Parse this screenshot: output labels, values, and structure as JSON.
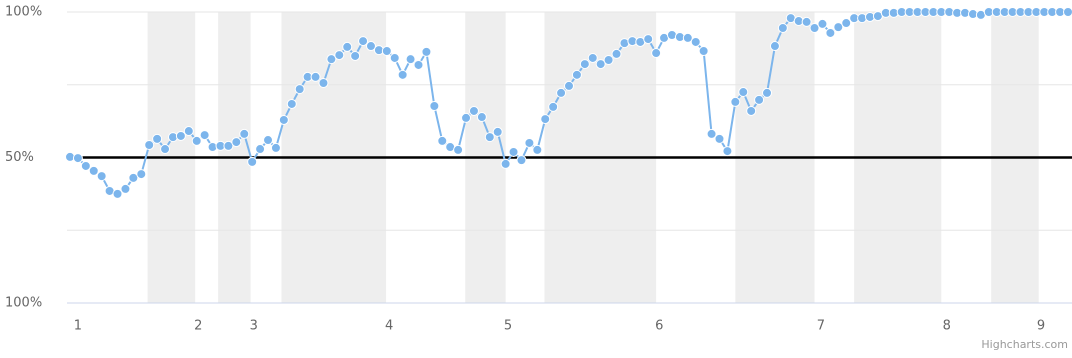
{
  "chart_data": {
    "type": "line",
    "values": [
      50.2,
      49.8,
      47.1,
      45.4,
      43.6,
      38.5,
      37.5,
      39.2,
      43.0,
      44.3,
      54.3,
      56.4,
      52.9,
      57.0,
      57.4,
      59.1,
      55.7,
      57.7,
      53.6,
      54.0,
      54.0,
      55.3,
      58.1,
      48.5,
      52.9,
      56.0,
      53.3,
      62.9,
      68.4,
      73.5,
      77.7,
      77.7,
      75.6,
      83.8,
      85.2,
      88.0,
      84.9,
      90.0,
      88.3,
      86.9,
      86.6,
      84.2,
      78.4,
      83.8,
      81.8,
      86.3,
      67.7,
      55.7,
      53.6,
      52.6,
      63.6,
      66.0,
      63.9,
      57.0,
      58.8,
      47.8,
      51.9,
      49.1,
      55.0,
      52.6,
      63.2,
      67.4,
      72.2,
      74.6,
      78.4,
      82.1,
      84.2,
      82.1,
      83.5,
      85.6,
      89.3,
      90.0,
      89.7,
      90.7,
      85.9,
      91.1,
      92.1,
      91.4,
      91.1,
      89.7,
      86.6,
      58.1,
      56.4,
      52.2,
      69.1,
      72.5,
      66.0,
      69.8,
      72.2,
      88.3,
      94.5,
      97.9,
      96.9,
      96.6,
      94.5,
      95.9,
      92.8,
      94.8,
      96.2,
      97.9,
      97.9,
      98.3,
      98.6,
      99.7,
      99.7,
      100,
      100,
      100,
      100,
      100,
      100,
      100,
      99.7,
      99.7,
      99.3,
      99.0,
      100,
      100,
      100,
      100,
      100,
      100,
      100,
      100,
      100,
      100,
      100
    ],
    "color": "#7cb5ec",
    "xlim": [
      0,
      126
    ],
    "xticks": [
      {
        "value": 1.0,
        "label": "1"
      },
      {
        "value": 16.2,
        "label": "2"
      },
      {
        "value": 23.2,
        "label": "3"
      },
      {
        "value": 40.3,
        "label": "4"
      },
      {
        "value": 55.3,
        "label": "5"
      },
      {
        "value": 74.4,
        "label": "6"
      },
      {
        "value": 94.8,
        "label": "7"
      },
      {
        "value": 110.7,
        "label": "8"
      },
      {
        "value": 122.6,
        "label": "9"
      }
    ],
    "ylim": [
      0,
      100
    ],
    "yticks": [
      {
        "value": 100,
        "label": "100%"
      },
      {
        "value": 50,
        "label": "50%"
      },
      {
        "value": 0,
        "label": "100%"
      }
    ],
    "grid_lines": [
      75,
      25
    ],
    "plot_line": 50,
    "plot_bands": [
      [
        9.8,
        15.8
      ],
      [
        18.7,
        22.8
      ],
      [
        26.7,
        39.9
      ],
      [
        49.9,
        55.0
      ],
      [
        59.9,
        74.0
      ],
      [
        84.0,
        94.0
      ],
      [
        99.0,
        110.0
      ],
      [
        116.3,
        122.3
      ]
    ],
    "credits": "Highcharts.com"
  }
}
